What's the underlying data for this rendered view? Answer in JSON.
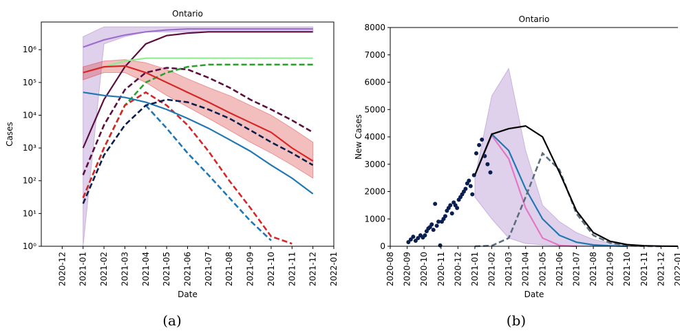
{
  "chart_data": [
    {
      "type": "line",
      "title": "Ontario",
      "xlabel": "Date",
      "ylabel": "Cases",
      "caption": "(a)",
      "log_y": true,
      "xlim": [
        "2020-11",
        "2022-01"
      ],
      "xticks": [
        "2020-12",
        "2021-01",
        "2021-02",
        "2021-03",
        "2021-04",
        "2021-05",
        "2021-06",
        "2021-07",
        "2021-08",
        "2021-09",
        "2021-10",
        "2021-11",
        "2021-12",
        "2022-01"
      ],
      "ylim": [
        1,
        7000000
      ],
      "yticks": [
        {
          "value": 1,
          "label": "10⁰"
        },
        {
          "value": 10,
          "label": "10¹"
        },
        {
          "value": 100,
          "label": "10²"
        },
        {
          "value": 1000,
          "label": "10³"
        },
        {
          "value": 10000,
          "label": "10⁴"
        },
        {
          "value": 100000,
          "label": "10⁵"
        },
        {
          "value": 1000000,
          "label": "10⁶"
        }
      ],
      "x": [
        "2021-01",
        "2021-02",
        "2021-03",
        "2021-04",
        "2021-05",
        "2021-06",
        "2021-07",
        "2021-08",
        "2021-09",
        "2021-10",
        "2021-11",
        "2021-12"
      ],
      "bands": [
        {
          "color": "#9467bd",
          "upper": [
            2500000,
            5000000,
            5000000,
            5000000,
            5000000,
            5000000,
            5000000,
            5000000,
            5000000,
            5000000,
            5000000,
            5000000
          ],
          "lower": [
            1,
            1500000,
            2500000,
            3500000,
            3500000,
            3500000,
            3500000,
            3500000,
            3500000,
            3500000,
            3500000,
            3500000
          ]
        },
        {
          "color": "#d62728",
          "upper": [
            300000,
            450000,
            500000,
            400000,
            250000,
            130000,
            70000,
            40000,
            20000,
            10000,
            4000,
            1500
          ],
          "lower": [
            120000,
            200000,
            200000,
            100000,
            40000,
            18000,
            8000,
            3500,
            1500,
            700,
            300,
            120
          ]
        }
      ],
      "series": [
        {
          "color": "#9b6fcf",
          "dash": false,
          "values": [
            1200000,
            2000000,
            2800000,
            3500000,
            4000000,
            4300000,
            4300000,
            4300000,
            4300000,
            4300000,
            4300000,
            4300000
          ]
        },
        {
          "color": "#5b0f3f",
          "dash": false,
          "values": [
            1000,
            30000,
            300000,
            1500000,
            2700000,
            3200000,
            3500000,
            3500000,
            3500000,
            3500000,
            3500000,
            3500000
          ]
        },
        {
          "color": "#5b0f3f",
          "dash": true,
          "values": [
            150,
            5000,
            60000,
            200000,
            280000,
            250000,
            140000,
            70000,
            30000,
            15000,
            7000,
            3000
          ]
        },
        {
          "color": "#90ee90",
          "dash": false,
          "values": [
            200000,
            300000,
            450000,
            550000,
            550000,
            550000,
            550000,
            550000,
            550000,
            550000,
            550000,
            550000
          ]
        },
        {
          "color": "#2ca02c",
          "dash": true,
          "values": [
            30,
            1000,
            20000,
            100000,
            200000,
            300000,
            350000,
            350000,
            350000,
            350000,
            350000,
            350000
          ]
        },
        {
          "color": "#d62728",
          "dash": false,
          "values": [
            200000,
            300000,
            320000,
            200000,
            100000,
            50000,
            25000,
            12000,
            6000,
            3000,
            1000,
            400
          ]
        },
        {
          "color": "#d62728",
          "dash": true,
          "values": [
            30,
            1000,
            20000,
            50000,
            20000,
            5000,
            800,
            100,
            15,
            2,
            1.2,
            null
          ]
        },
        {
          "color": "#1f77b4",
          "dash": false,
          "values": [
            50000,
            40000,
            35000,
            25000,
            15000,
            8000,
            4000,
            1800,
            800,
            300,
            120,
            40
          ]
        },
        {
          "color": "#1f77b4",
          "dash": true,
          "values": [
            null,
            null,
            null,
            20000,
            4000,
            700,
            150,
            30,
            6,
            1.5,
            null,
            null
          ]
        },
        {
          "color": "#0b1f4f",
          "dash": true,
          "values": [
            20,
            600,
            5000,
            20000,
            30000,
            25000,
            15000,
            8000,
            3500,
            1500,
            700,
            300
          ]
        }
      ]
    },
    {
      "type": "line",
      "title": "Ontario",
      "xlabel": "Date",
      "ylabel": "New Cases",
      "caption": "(b)",
      "log_y": false,
      "xlim": [
        "2020-08",
        "2022-01"
      ],
      "xticks": [
        "2020-08",
        "2020-09",
        "2020-10",
        "2020-11",
        "2020-12",
        "2021-01",
        "2021-02",
        "2021-03",
        "2021-04",
        "2021-05",
        "2021-06",
        "2021-07",
        "2021-08",
        "2021-09",
        "2021-10",
        "2021-11",
        "2021-12",
        "2022-01"
      ],
      "ylim": [
        0,
        8000
      ],
      "yticks": [
        0,
        1000,
        2000,
        3000,
        4000,
        5000,
        6000,
        7000,
        8000
      ],
      "x": [
        "2021-01",
        "2021-02",
        "2021-03",
        "2021-04",
        "2021-05",
        "2021-06",
        "2021-07",
        "2021-08",
        "2021-09",
        "2021-10",
        "2021-11",
        "2021-12",
        "2022-01"
      ],
      "bands": [
        {
          "color": "#9467bd",
          "upper": [
            2500,
            5500,
            6500,
            3500,
            1500,
            900,
            500,
            250,
            120,
            50,
            20,
            10,
            5
          ],
          "lower": [
            1800,
            1000,
            300,
            100,
            50,
            20,
            10,
            5,
            0,
            0,
            0,
            0,
            0
          ]
        }
      ],
      "series": [
        {
          "color": "#e377c2",
          "dash": false,
          "values": [
            2600,
            4050,
            3200,
            1400,
            300,
            30,
            0,
            null,
            null,
            null,
            null,
            null,
            null
          ]
        },
        {
          "color": "#1f77b4",
          "dash": false,
          "values": [
            2600,
            4100,
            3500,
            2100,
            1000,
            400,
            150,
            50,
            15,
            0,
            null,
            null,
            null
          ]
        },
        {
          "color": "#5a6e7e",
          "dash": true,
          "values": [
            0,
            20,
            300,
            1800,
            3400,
            2800,
            1200,
            400,
            120,
            30,
            5,
            0,
            null
          ]
        },
        {
          "color": "#000000",
          "dash": false,
          "values": [
            2600,
            4100,
            4300,
            4400,
            4000,
            2700,
            1300,
            500,
            180,
            60,
            20,
            5,
            1
          ]
        }
      ],
      "scatter": {
        "color": "#0b1f4f",
        "x": [
          "2020-09",
          "2020-10",
          "2020-11",
          "2020-12",
          "2021-01"
        ],
        "values": [
          [
            150,
            250,
            350,
            200,
            300,
            400,
            320
          ],
          [
            400,
            550,
            650,
            700,
            800,
            600,
            1550,
            750,
            900,
            30
          ],
          [
            900,
            1000,
            1100,
            1300,
            1400,
            1500,
            1200,
            1600,
            1500,
            1400
          ],
          [
            1700,
            1800,
            1900,
            2000,
            2100,
            2300,
            2400,
            2200,
            1900,
            2600
          ],
          [
            3400,
            3700,
            3900,
            3300,
            3000,
            2700
          ]
        ]
      }
    }
  ]
}
